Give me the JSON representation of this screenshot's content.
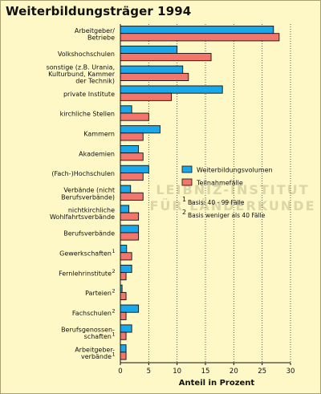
{
  "chart_data": {
    "type": "bar",
    "orientation": "horizontal",
    "title": "Weiterbildungsträger 1994",
    "xlabel": "Anteil in Prozent",
    "xlim": [
      0,
      30
    ],
    "xticks": [
      "0",
      "5",
      "10",
      "15",
      "20",
      "25",
      "30"
    ],
    "grid": "vertical-dotted",
    "categories": [
      {
        "lines": [
          "Arbeitgeber/",
          "Betriebe"
        ],
        "sup": ""
      },
      {
        "lines": [
          "Volkshochschulen"
        ],
        "sup": ""
      },
      {
        "lines": [
          "sonstige (z.B. Urania,",
          "Kulturbund, Kammer",
          "der Technik)"
        ],
        "sup": ""
      },
      {
        "lines": [
          "private Institute"
        ],
        "sup": ""
      },
      {
        "lines": [
          "kirchliche Stellen"
        ],
        "sup": ""
      },
      {
        "lines": [
          "Kammern"
        ],
        "sup": ""
      },
      {
        "lines": [
          "Akademien"
        ],
        "sup": ""
      },
      {
        "lines": [
          "(Fach-)Hochschulen"
        ],
        "sup": ""
      },
      {
        "lines": [
          "Verbände (nicht",
          "Berufsverbände)"
        ],
        "sup": ""
      },
      {
        "lines": [
          "nichtkirchliche",
          "Wohlfahrtsverbände"
        ],
        "sup": ""
      },
      {
        "lines": [
          "Berufsverbände"
        ],
        "sup": ""
      },
      {
        "lines": [
          "Gewerkschaften"
        ],
        "sup": "1"
      },
      {
        "lines": [
          "Fernlehrinstitute"
        ],
        "sup": "2"
      },
      {
        "lines": [
          "Parteien"
        ],
        "sup": "2"
      },
      {
        "lines": [
          "Fachschulen"
        ],
        "sup": "2"
      },
      {
        "lines": [
          "Berufsgenossen-",
          "schaften"
        ],
        "sup": "1"
      },
      {
        "lines": [
          "Arbeitgeber-",
          "verbände"
        ],
        "sup": "1"
      }
    ],
    "series": [
      {
        "name": "Weiterbildungsvolumen",
        "color": "#19a9ea",
        "values": [
          27,
          10,
          11,
          18,
          2,
          7,
          3.2,
          5,
          1.8,
          1.5,
          3.2,
          1.1,
          2,
          0.3,
          3.2,
          2,
          1
        ]
      },
      {
        "name": "Teilnahmefälle",
        "color": "#f2766b",
        "values": [
          28,
          16,
          12,
          9,
          5,
          4,
          4,
          4,
          4,
          3.2,
          3.2,
          2,
          1,
          1,
          1,
          1,
          1
        ]
      }
    ],
    "legend_position": "center-right",
    "notes": [
      {
        "mark": "1",
        "text": "Basis: 40 - 99 Fälle"
      },
      {
        "mark": "2",
        "text": "Basis weniger als 40 Fälle"
      }
    ],
    "watermark": [
      "LEIBNIZ-INSTITUT",
      "FÜR LÄNDERKUNDE"
    ]
  }
}
